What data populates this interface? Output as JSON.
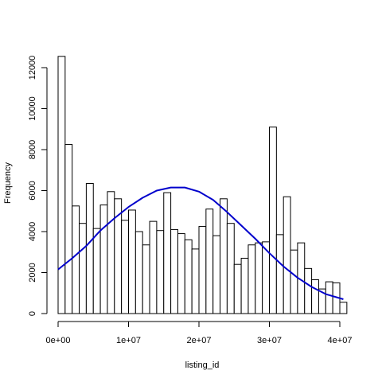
{
  "chart_data": {
    "type": "bar",
    "subtype": "histogram",
    "title": "",
    "xlabel": "listing_id",
    "ylabel": "Frequency",
    "xlim": [
      0,
      41000000
    ],
    "ylim": [
      0,
      12500
    ],
    "bin_width": 1000000,
    "bin_start": 0,
    "values": [
      12550,
      8250,
      5250,
      4400,
      6350,
      4150,
      5300,
      5950,
      5600,
      4550,
      5050,
      4000,
      3350,
      4500,
      4050,
      5900,
      4100,
      3900,
      3600,
      3150,
      4250,
      5100,
      3800,
      5600,
      4400,
      2400,
      2700,
      3350,
      3450,
      3500,
      9100,
      3850,
      5700,
      3100,
      3450,
      2200,
      1650,
      1200,
      1550,
      1500,
      550
    ],
    "x_ticks": [
      0,
      10000000,
      20000000,
      30000000,
      40000000
    ],
    "x_tick_labels": [
      "0e+00",
      "1e+07",
      "2e+07",
      "3e+07",
      "4e+07"
    ],
    "y_ticks": [
      0,
      2000,
      4000,
      6000,
      8000,
      10000,
      12000
    ],
    "y_tick_labels": [
      "0",
      "2000",
      "4000",
      "6000",
      "8000",
      "10000",
      "12000"
    ],
    "density_curve": {
      "color": "#0000cc",
      "x": [
        0,
        2000000,
        4000000,
        6000000,
        8000000,
        10000000,
        12000000,
        14000000,
        16000000,
        18000000,
        20000000,
        22000000,
        24000000,
        26000000,
        28000000,
        30000000,
        32000000,
        34000000,
        36000000,
        38000000,
        40500000
      ],
      "y": [
        2150,
        2700,
        3300,
        4050,
        4650,
        5200,
        5650,
        6000,
        6150,
        6150,
        5950,
        5550,
        4950,
        4300,
        3650,
        2950,
        2300,
        1750,
        1300,
        950,
        700
      ]
    },
    "grid": false,
    "legend": "none"
  }
}
